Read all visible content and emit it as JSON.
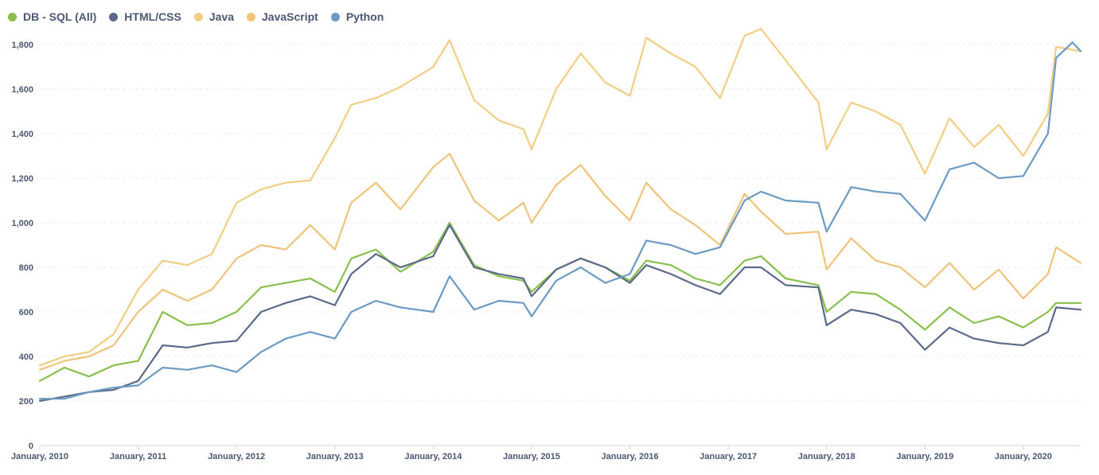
{
  "legend": [
    {
      "name": "DB - SQL (All)",
      "color": "#88bf4d"
    },
    {
      "name": "HTML/CSS",
      "color": "#5b6a8a"
    },
    {
      "name": "Java",
      "color": "#f2cd83"
    },
    {
      "name": "JavaScript",
      "color": "#efc47a"
    },
    {
      "name": "Python",
      "color": "#6b9ac4"
    }
  ],
  "chart_data": {
    "type": "line",
    "title": "",
    "xlabel": "",
    "ylabel": "",
    "x_ticks": [
      "January, 2010",
      "January, 2011",
      "January, 2012",
      "January, 2013",
      "January, 2014",
      "January, 2015",
      "January, 2016",
      "January, 2017",
      "January, 2018",
      "January, 2019",
      "January, 2020"
    ],
    "y_ticks": [
      "0",
      "200",
      "400",
      "600",
      "800",
      "1,000",
      "1,200",
      "1,400",
      "1,600",
      "1,800"
    ],
    "ylim": [
      0,
      1900
    ],
    "x_start": "2010-01",
    "x_end": "2020-08",
    "grid": "horizontal-dashed",
    "legend_position": "top-left",
    "series": [
      {
        "name": "Java",
        "color": "#f2cd83",
        "points": [
          [
            "2010-01",
            360
          ],
          [
            "2010-04",
            400
          ],
          [
            "2010-07",
            420
          ],
          [
            "2010-10",
            500
          ],
          [
            "2011-01",
            700
          ],
          [
            "2011-04",
            830
          ],
          [
            "2011-07",
            810
          ],
          [
            "2011-10",
            860
          ],
          [
            "2012-01",
            1090
          ],
          [
            "2012-04",
            1150
          ],
          [
            "2012-07",
            1180
          ],
          [
            "2012-10",
            1190
          ],
          [
            "2013-01",
            1380
          ],
          [
            "2013-03",
            1530
          ],
          [
            "2013-06",
            1560
          ],
          [
            "2013-09",
            1610
          ],
          [
            "2014-01",
            1700
          ],
          [
            "2014-03",
            1820
          ],
          [
            "2014-06",
            1550
          ],
          [
            "2014-09",
            1460
          ],
          [
            "2014-12",
            1420
          ],
          [
            "2015-01",
            1330
          ],
          [
            "2015-04",
            1600
          ],
          [
            "2015-07",
            1760
          ],
          [
            "2015-10",
            1630
          ],
          [
            "2016-01",
            1570
          ],
          [
            "2016-03",
            1830
          ],
          [
            "2016-06",
            1760
          ],
          [
            "2016-09",
            1700
          ],
          [
            "2016-12",
            1560
          ],
          [
            "2017-03",
            1840
          ],
          [
            "2017-05",
            1870
          ],
          [
            "2017-08",
            1730
          ],
          [
            "2017-12",
            1540
          ],
          [
            "2018-01",
            1330
          ],
          [
            "2018-04",
            1540
          ],
          [
            "2018-07",
            1500
          ],
          [
            "2018-10",
            1440
          ],
          [
            "2019-01",
            1220
          ],
          [
            "2019-04",
            1470
          ],
          [
            "2019-07",
            1340
          ],
          [
            "2019-10",
            1440
          ],
          [
            "2020-01",
            1300
          ],
          [
            "2020-04",
            1490
          ],
          [
            "2020-05",
            1790
          ],
          [
            "2020-08",
            1770
          ]
        ]
      },
      {
        "name": "JavaScript",
        "color": "#efc47a",
        "points": [
          [
            "2010-01",
            340
          ],
          [
            "2010-04",
            380
          ],
          [
            "2010-07",
            400
          ],
          [
            "2010-10",
            450
          ],
          [
            "2011-01",
            600
          ],
          [
            "2011-04",
            700
          ],
          [
            "2011-07",
            650
          ],
          [
            "2011-10",
            700
          ],
          [
            "2012-01",
            840
          ],
          [
            "2012-04",
            900
          ],
          [
            "2012-07",
            880
          ],
          [
            "2012-10",
            990
          ],
          [
            "2013-01",
            880
          ],
          [
            "2013-03",
            1090
          ],
          [
            "2013-06",
            1180
          ],
          [
            "2013-09",
            1060
          ],
          [
            "2014-01",
            1250
          ],
          [
            "2014-03",
            1310
          ],
          [
            "2014-06",
            1100
          ],
          [
            "2014-09",
            1010
          ],
          [
            "2014-12",
            1090
          ],
          [
            "2015-01",
            1000
          ],
          [
            "2015-04",
            1170
          ],
          [
            "2015-07",
            1260
          ],
          [
            "2015-10",
            1120
          ],
          [
            "2016-01",
            1010
          ],
          [
            "2016-03",
            1180
          ],
          [
            "2016-06",
            1060
          ],
          [
            "2016-09",
            990
          ],
          [
            "2016-12",
            900
          ],
          [
            "2017-03",
            1130
          ],
          [
            "2017-05",
            1050
          ],
          [
            "2017-08",
            950
          ],
          [
            "2017-12",
            960
          ],
          [
            "2018-01",
            790
          ],
          [
            "2018-04",
            930
          ],
          [
            "2018-07",
            830
          ],
          [
            "2018-10",
            800
          ],
          [
            "2019-01",
            710
          ],
          [
            "2019-04",
            820
          ],
          [
            "2019-07",
            700
          ],
          [
            "2019-10",
            790
          ],
          [
            "2020-01",
            660
          ],
          [
            "2020-04",
            770
          ],
          [
            "2020-05",
            890
          ],
          [
            "2020-08",
            820
          ]
        ]
      },
      {
        "name": "DB - SQL (All)",
        "color": "#88bf4d",
        "points": [
          [
            "2010-01",
            290
          ],
          [
            "2010-04",
            350
          ],
          [
            "2010-07",
            310
          ],
          [
            "2010-10",
            360
          ],
          [
            "2011-01",
            380
          ],
          [
            "2011-04",
            600
          ],
          [
            "2011-07",
            540
          ],
          [
            "2011-10",
            550
          ],
          [
            "2012-01",
            600
          ],
          [
            "2012-04",
            710
          ],
          [
            "2012-07",
            730
          ],
          [
            "2012-10",
            750
          ],
          [
            "2013-01",
            690
          ],
          [
            "2013-03",
            840
          ],
          [
            "2013-06",
            880
          ],
          [
            "2013-09",
            780
          ],
          [
            "2014-01",
            870
          ],
          [
            "2014-03",
            1000
          ],
          [
            "2014-06",
            810
          ],
          [
            "2014-09",
            760
          ],
          [
            "2014-12",
            740
          ],
          [
            "2015-01",
            690
          ],
          [
            "2015-04",
            790
          ],
          [
            "2015-07",
            840
          ],
          [
            "2015-10",
            800
          ],
          [
            "2016-01",
            740
          ],
          [
            "2016-03",
            830
          ],
          [
            "2016-06",
            810
          ],
          [
            "2016-09",
            750
          ],
          [
            "2016-12",
            720
          ],
          [
            "2017-03",
            830
          ],
          [
            "2017-05",
            850
          ],
          [
            "2017-08",
            750
          ],
          [
            "2017-12",
            720
          ],
          [
            "2018-01",
            600
          ],
          [
            "2018-04",
            690
          ],
          [
            "2018-07",
            680
          ],
          [
            "2018-10",
            610
          ],
          [
            "2019-01",
            520
          ],
          [
            "2019-04",
            620
          ],
          [
            "2019-07",
            550
          ],
          [
            "2019-10",
            580
          ],
          [
            "2020-01",
            530
          ],
          [
            "2020-04",
            600
          ],
          [
            "2020-05",
            640
          ],
          [
            "2020-08",
            640
          ]
        ]
      },
      {
        "name": "HTML/CSS",
        "color": "#5b6a8a",
        "points": [
          [
            "2010-01",
            200
          ],
          [
            "2010-04",
            220
          ],
          [
            "2010-07",
            240
          ],
          [
            "2010-10",
            250
          ],
          [
            "2011-01",
            290
          ],
          [
            "2011-04",
            450
          ],
          [
            "2011-07",
            440
          ],
          [
            "2011-10",
            460
          ],
          [
            "2012-01",
            470
          ],
          [
            "2012-04",
            600
          ],
          [
            "2012-07",
            640
          ],
          [
            "2012-10",
            670
          ],
          [
            "2013-01",
            630
          ],
          [
            "2013-03",
            770
          ],
          [
            "2013-06",
            860
          ],
          [
            "2013-09",
            800
          ],
          [
            "2014-01",
            850
          ],
          [
            "2014-03",
            990
          ],
          [
            "2014-06",
            800
          ],
          [
            "2014-09",
            770
          ],
          [
            "2014-12",
            750
          ],
          [
            "2015-01",
            670
          ],
          [
            "2015-04",
            790
          ],
          [
            "2015-07",
            840
          ],
          [
            "2015-10",
            800
          ],
          [
            "2016-01",
            730
          ],
          [
            "2016-03",
            810
          ],
          [
            "2016-06",
            770
          ],
          [
            "2016-09",
            720
          ],
          [
            "2016-12",
            680
          ],
          [
            "2017-03",
            800
          ],
          [
            "2017-05",
            800
          ],
          [
            "2017-08",
            720
          ],
          [
            "2017-12",
            710
          ],
          [
            "2018-01",
            540
          ],
          [
            "2018-04",
            610
          ],
          [
            "2018-07",
            590
          ],
          [
            "2018-10",
            550
          ],
          [
            "2019-01",
            430
          ],
          [
            "2019-04",
            530
          ],
          [
            "2019-07",
            480
          ],
          [
            "2019-10",
            460
          ],
          [
            "2020-01",
            450
          ],
          [
            "2020-04",
            510
          ],
          [
            "2020-05",
            620
          ],
          [
            "2020-08",
            610
          ]
        ]
      },
      {
        "name": "Python",
        "color": "#6b9ac4",
        "points": [
          [
            "2010-01",
            210
          ],
          [
            "2010-04",
            210
          ],
          [
            "2010-07",
            240
          ],
          [
            "2010-10",
            260
          ],
          [
            "2011-01",
            270
          ],
          [
            "2011-04",
            350
          ],
          [
            "2011-07",
            340
          ],
          [
            "2011-10",
            360
          ],
          [
            "2012-01",
            330
          ],
          [
            "2012-04",
            420
          ],
          [
            "2012-07",
            480
          ],
          [
            "2012-10",
            510
          ],
          [
            "2013-01",
            480
          ],
          [
            "2013-03",
            600
          ],
          [
            "2013-06",
            650
          ],
          [
            "2013-09",
            620
          ],
          [
            "2014-01",
            600
          ],
          [
            "2014-03",
            760
          ],
          [
            "2014-06",
            610
          ],
          [
            "2014-09",
            650
          ],
          [
            "2014-12",
            640
          ],
          [
            "2015-01",
            580
          ],
          [
            "2015-04",
            740
          ],
          [
            "2015-07",
            800
          ],
          [
            "2015-10",
            730
          ],
          [
            "2016-01",
            770
          ],
          [
            "2016-03",
            920
          ],
          [
            "2016-06",
            900
          ],
          [
            "2016-09",
            860
          ],
          [
            "2016-12",
            890
          ],
          [
            "2017-03",
            1100
          ],
          [
            "2017-05",
            1140
          ],
          [
            "2017-08",
            1100
          ],
          [
            "2017-12",
            1090
          ],
          [
            "2018-01",
            960
          ],
          [
            "2018-04",
            1160
          ],
          [
            "2018-07",
            1140
          ],
          [
            "2018-10",
            1130
          ],
          [
            "2019-01",
            1010
          ],
          [
            "2019-04",
            1240
          ],
          [
            "2019-07",
            1270
          ],
          [
            "2019-10",
            1200
          ],
          [
            "2020-01",
            1210
          ],
          [
            "2020-04",
            1400
          ],
          [
            "2020-05",
            1740
          ],
          [
            "2020-07",
            1810
          ],
          [
            "2020-08",
            1770
          ]
        ]
      }
    ]
  }
}
